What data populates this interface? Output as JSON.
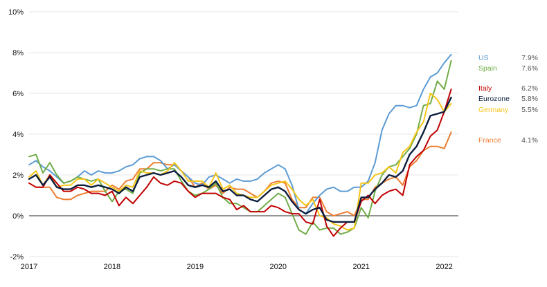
{
  "chart_data": {
    "type": "line",
    "title": "",
    "xlabel": "",
    "ylabel": "",
    "ylim": [
      -2,
      10
    ],
    "xlim": [
      2017,
      2022.17
    ],
    "y_ticks": [
      "-2%",
      "0%",
      "2%",
      "4%",
      "6%",
      "8%",
      "10%"
    ],
    "y_tick_values": [
      -2,
      0,
      2,
      4,
      6,
      8,
      10
    ],
    "x_ticks": [
      "2017",
      "2018",
      "2019",
      "2020",
      "2021",
      "2022"
    ],
    "x_tick_values": [
      2017,
      2018,
      2019,
      2020,
      2021,
      2022
    ],
    "grid": "horizontal",
    "legend_position": "right",
    "start": "2017-01",
    "interval": "monthly",
    "series": [
      {
        "name": "US",
        "last_label": "7.9%",
        "color": "#5b9bd5",
        "values": [
          2.5,
          2.7,
          2.4,
          2.2,
          1.9,
          1.6,
          1.7,
          1.9,
          2.2,
          2.0,
          2.2,
          2.1,
          2.1,
          2.2,
          2.4,
          2.5,
          2.8,
          2.9,
          2.9,
          2.7,
          2.3,
          2.5,
          2.2,
          1.9,
          1.6,
          1.5,
          1.9,
          2.0,
          1.8,
          1.6,
          1.8,
          1.7,
          1.7,
          1.8,
          2.1,
          2.3,
          2.5,
          2.3,
          1.5,
          0.3,
          0.1,
          0.6,
          1.0,
          1.3,
          1.4,
          1.2,
          1.2,
          1.4,
          1.4,
          1.7,
          2.6,
          4.2,
          5.0,
          5.4,
          5.4,
          5.3,
          5.4,
          6.2,
          6.8,
          7.0,
          7.5,
          7.9
        ]
      },
      {
        "name": "Spain",
        "last_label": "7.6%",
        "color": "#70ad47",
        "values": [
          2.9,
          3.0,
          2.1,
          2.6,
          2.0,
          1.6,
          1.7,
          1.9,
          1.8,
          1.7,
          1.8,
          1.2,
          0.7,
          1.2,
          1.3,
          1.1,
          2.1,
          2.3,
          2.3,
          2.2,
          2.3,
          2.3,
          1.7,
          1.2,
          1.0,
          1.1,
          1.3,
          1.6,
          0.9,
          0.6,
          0.6,
          0.4,
          0.2,
          0.2,
          0.5,
          0.8,
          1.1,
          0.9,
          0.1,
          -0.7,
          -0.9,
          -0.3,
          -0.7,
          -0.6,
          -0.6,
          -0.9,
          -0.8,
          -0.6,
          0.4,
          -0.1,
          1.2,
          2.0,
          2.4,
          2.5,
          2.9,
          3.3,
          4.0,
          5.4,
          5.5,
          6.6,
          6.2,
          7.6
        ]
      },
      {
        "name": "Italy",
        "last_label": "6.2%",
        "color": "#c00000",
        "values": [
          1.6,
          1.4,
          1.4,
          2.0,
          1.6,
          1.2,
          1.2,
          1.4,
          1.3,
          1.1,
          1.1,
          1.0,
          1.2,
          0.5,
          0.9,
          0.6,
          1.0,
          1.4,
          1.9,
          1.6,
          1.5,
          1.7,
          1.6,
          1.2,
          0.9,
          1.1,
          1.1,
          1.1,
          0.9,
          0.8,
          0.3,
          0.5,
          0.2,
          0.2,
          0.2,
          0.5,
          0.4,
          0.2,
          0.1,
          0.1,
          -0.3,
          -0.4,
          0.8,
          -0.5,
          -1.0,
          -0.6,
          -0.3,
          -0.3,
          0.7,
          1.0,
          0.6,
          1.0,
          1.2,
          1.3,
          1.0,
          2.5,
          2.9,
          3.2,
          3.9,
          4.2,
          5.1,
          6.2
        ]
      },
      {
        "name": "Eurozone",
        "last_label": "5.8%",
        "color": "#0d1d3d",
        "values": [
          1.8,
          2.0,
          1.5,
          1.9,
          1.4,
          1.3,
          1.3,
          1.5,
          1.5,
          1.4,
          1.5,
          1.4,
          1.3,
          1.1,
          1.4,
          1.2,
          1.9,
          2.0,
          2.1,
          2.0,
          2.1,
          2.2,
          1.9,
          1.5,
          1.4,
          1.5,
          1.4,
          1.7,
          1.2,
          1.3,
          1.0,
          1.0,
          0.8,
          0.7,
          1.0,
          1.3,
          1.4,
          1.2,
          0.7,
          0.3,
          0.1,
          0.3,
          0.4,
          -0.2,
          -0.3,
          -0.3,
          -0.3,
          -0.3,
          0.9,
          0.9,
          1.3,
          1.6,
          2.0,
          1.9,
          2.2,
          3.0,
          3.4,
          4.1,
          4.9,
          5.0,
          5.1,
          5.8
        ]
      },
      {
        "name": "Germany",
        "last_label": "5.5%",
        "color": "#f5c518",
        "values": [
          1.9,
          2.2,
          1.5,
          2.0,
          1.4,
          1.5,
          1.5,
          1.8,
          1.8,
          1.5,
          1.8,
          1.6,
          1.4,
          1.2,
          1.5,
          1.4,
          2.2,
          2.1,
          2.1,
          2.0,
          2.2,
          2.6,
          2.2,
          1.7,
          1.7,
          1.7,
          1.4,
          2.1,
          1.3,
          1.5,
          1.1,
          1.0,
          0.9,
          0.9,
          1.2,
          1.5,
          1.6,
          1.7,
          1.3,
          0.8,
          0.5,
          0.8,
          0.0,
          -0.1,
          -0.4,
          -0.5,
          -0.7,
          -0.6,
          1.6,
          1.6,
          2.0,
          2.1,
          2.4,
          2.1,
          3.1,
          3.4,
          4.1,
          4.6,
          6.0,
          5.7,
          5.1,
          5.5
        ]
      },
      {
        "name": "France",
        "last_label": "4.1%",
        "color": "#ed7d31",
        "values": [
          1.6,
          1.4,
          1.4,
          1.4,
          0.9,
          0.8,
          0.8,
          1.0,
          1.1,
          1.2,
          1.2,
          1.2,
          1.5,
          1.3,
          1.7,
          1.8,
          2.3,
          2.3,
          2.6,
          2.6,
          2.5,
          2.5,
          2.2,
          1.9,
          1.4,
          1.6,
          1.3,
          1.5,
          1.1,
          1.4,
          1.3,
          1.3,
          1.1,
          0.9,
          1.2,
          1.6,
          1.7,
          1.6,
          0.8,
          0.4,
          0.4,
          0.9,
          0.9,
          0.2,
          0.0,
          0.1,
          0.2,
          0.0,
          0.8,
          0.8,
          1.4,
          1.6,
          1.8,
          1.9,
          1.5,
          2.4,
          2.7,
          3.2,
          3.4,
          3.4,
          3.3,
          4.1
        ]
      }
    ]
  }
}
